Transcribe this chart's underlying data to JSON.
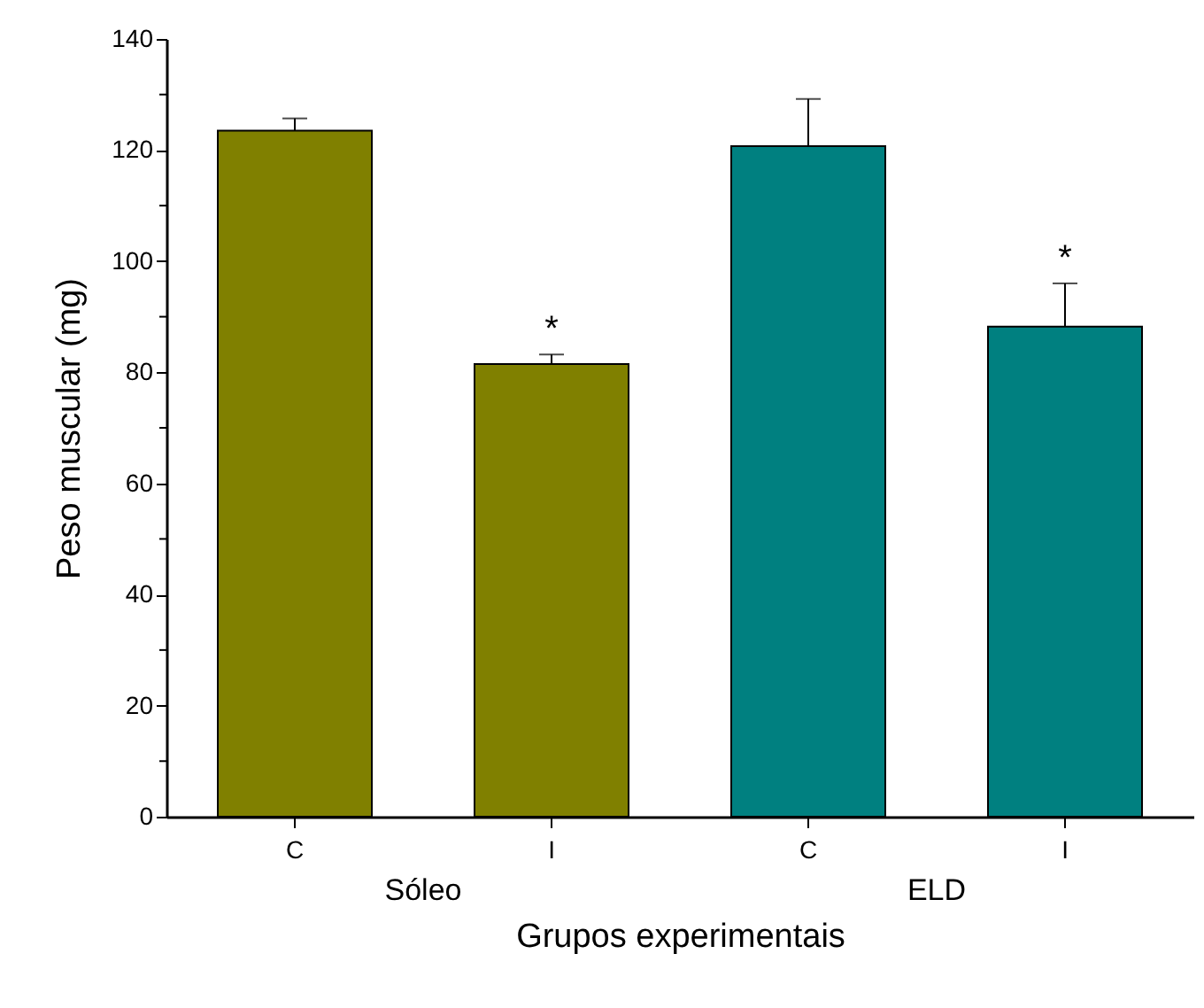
{
  "chart_data": {
    "type": "bar",
    "xlabel": "Grupos experimentais",
    "ylabel": "Peso muscular (mg)",
    "categories": [
      "C",
      "I",
      "C",
      "I"
    ],
    "values": [
      123.5,
      81.5,
      120.7,
      88.2
    ],
    "colors": [
      "#808000",
      "#808000",
      "#008080",
      "#008080"
    ],
    "errors": [
      [
        123.5,
        125.7
      ],
      [
        81.5,
        83.2
      ],
      [
        120.7,
        129.2
      ],
      [
        88.2,
        96.0
      ]
    ],
    "value_labels": [
      null,
      "*",
      null,
      "*"
    ],
    "annotations": [
      "Sóleo",
      "ELD"
    ],
    "ylim": [
      0,
      140
    ],
    "yticks": [
      0,
      {
        "value": 10,
        "label": null
      },
      20,
      {
        "value": 30,
        "label": null
      },
      40,
      {
        "value": 50,
        "label": null
      },
      60,
      {
        "value": 70,
        "label": null
      },
      80,
      {
        "value": 90,
        "label": null
      },
      100,
      {
        "value": 110,
        "label": null
      },
      120,
      {
        "value": 130,
        "label": null
      },
      140
    ],
    "grid": false
  }
}
